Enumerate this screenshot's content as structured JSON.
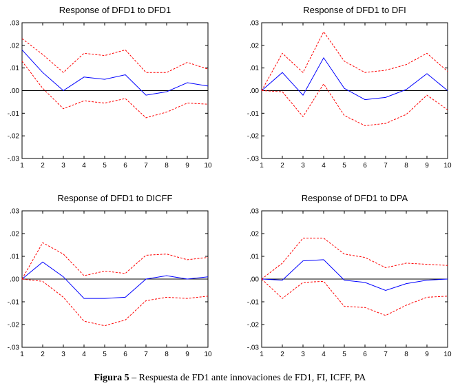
{
  "caption": {
    "label": "Figura 5",
    "sep": " – ",
    "text": "Respuesta de FD1 ante innovaciones de FD1, FI, ICFF, PA"
  },
  "colors": {
    "response": "#0000ff",
    "bands": "#ff0000",
    "zero_line": "#000000"
  },
  "chart_data": [
    {
      "type": "line",
      "title": "Response of DFD1 to DFD1",
      "x": [
        1,
        2,
        3,
        4,
        5,
        6,
        7,
        8,
        9,
        10
      ],
      "ylim": [
        -0.03,
        0.03
      ],
      "yticks": [
        ".03",
        ".02",
        ".01",
        ".00",
        "-.01",
        "-.02",
        "-.03"
      ],
      "series": [
        {
          "style": "solid",
          "color": "#0000ff",
          "values": [
            0.018,
            0.008,
            0.0,
            0.006,
            0.005,
            0.007,
            -0.002,
            -0.0005,
            0.0035,
            0.002
          ]
        },
        {
          "style": "dashed",
          "color": "#ff0000",
          "values": [
            0.023,
            0.016,
            0.008,
            0.0165,
            0.0155,
            0.018,
            0.008,
            0.008,
            0.0125,
            0.0095
          ]
        },
        {
          "style": "dashed",
          "color": "#ff0000",
          "values": [
            0.013,
            0.001,
            -0.008,
            -0.0045,
            -0.0055,
            -0.0035,
            -0.012,
            -0.0095,
            -0.0055,
            -0.006
          ]
        }
      ]
    },
    {
      "type": "line",
      "title": "Response of DFD1 to DFI",
      "x": [
        1,
        2,
        3,
        4,
        5,
        6,
        7,
        8,
        9,
        10
      ],
      "ylim": [
        -0.03,
        0.03
      ],
      "yticks": [
        ".03",
        ".02",
        ".01",
        ".00",
        "-.01",
        "-.02",
        "-.03"
      ],
      "series": [
        {
          "style": "solid",
          "color": "#0000ff",
          "values": [
            0.0,
            0.008,
            -0.002,
            0.0145,
            0.001,
            -0.004,
            -0.003,
            0.0005,
            0.0075,
            0.0
          ]
        },
        {
          "style": "dashed",
          "color": "#ff0000",
          "values": [
            0.0,
            0.0165,
            0.008,
            0.026,
            0.013,
            0.008,
            0.009,
            0.0115,
            0.0165,
            0.0085
          ]
        },
        {
          "style": "dashed",
          "color": "#ff0000",
          "values": [
            0.0,
            -0.0005,
            -0.0115,
            0.003,
            -0.011,
            -0.0155,
            -0.0145,
            -0.0105,
            -0.002,
            -0.0085
          ]
        }
      ]
    },
    {
      "type": "line",
      "title": "Response of DFD1 to DICFF",
      "x": [
        1,
        2,
        3,
        4,
        5,
        6,
        7,
        8,
        9,
        10
      ],
      "ylim": [
        -0.03,
        0.03
      ],
      "yticks": [
        ".03",
        ".02",
        ".01",
        ".00",
        "-.01",
        "-.02",
        "-.03"
      ],
      "series": [
        {
          "style": "solid",
          "color": "#0000ff",
          "values": [
            0.0,
            0.0075,
            0.001,
            -0.0085,
            -0.0085,
            -0.008,
            0.0,
            0.0015,
            0.0,
            0.001
          ]
        },
        {
          "style": "dashed",
          "color": "#ff0000",
          "values": [
            0.0,
            0.016,
            0.011,
            0.0015,
            0.0035,
            0.0025,
            0.0105,
            0.011,
            0.0085,
            0.0095
          ]
        },
        {
          "style": "dashed",
          "color": "#ff0000",
          "values": [
            0.0,
            -0.001,
            -0.008,
            -0.0185,
            -0.0205,
            -0.018,
            -0.0095,
            -0.008,
            -0.0085,
            -0.0075
          ]
        }
      ]
    },
    {
      "type": "line",
      "title": "Response of DFD1 to DPA",
      "x": [
        1,
        2,
        3,
        4,
        5,
        6,
        7,
        8,
        9,
        10
      ],
      "ylim": [
        -0.03,
        0.03
      ],
      "yticks": [
        ".03",
        ".02",
        ".01",
        ".00",
        "-.01",
        "-.02",
        "-.03"
      ],
      "series": [
        {
          "style": "solid",
          "color": "#0000ff",
          "values": [
            0.0,
            -0.0005,
            0.008,
            0.0085,
            -0.0005,
            -0.0015,
            -0.005,
            -0.002,
            -0.0005,
            0.0
          ]
        },
        {
          "style": "dashed",
          "color": "#ff0000",
          "values": [
            0.0,
            0.007,
            0.018,
            0.018,
            0.011,
            0.0095,
            0.005,
            0.007,
            0.0065,
            0.006
          ]
        },
        {
          "style": "dashed",
          "color": "#ff0000",
          "values": [
            0.0,
            -0.0085,
            -0.0015,
            -0.001,
            -0.012,
            -0.0125,
            -0.016,
            -0.0115,
            -0.008,
            -0.0075
          ]
        }
      ]
    }
  ]
}
